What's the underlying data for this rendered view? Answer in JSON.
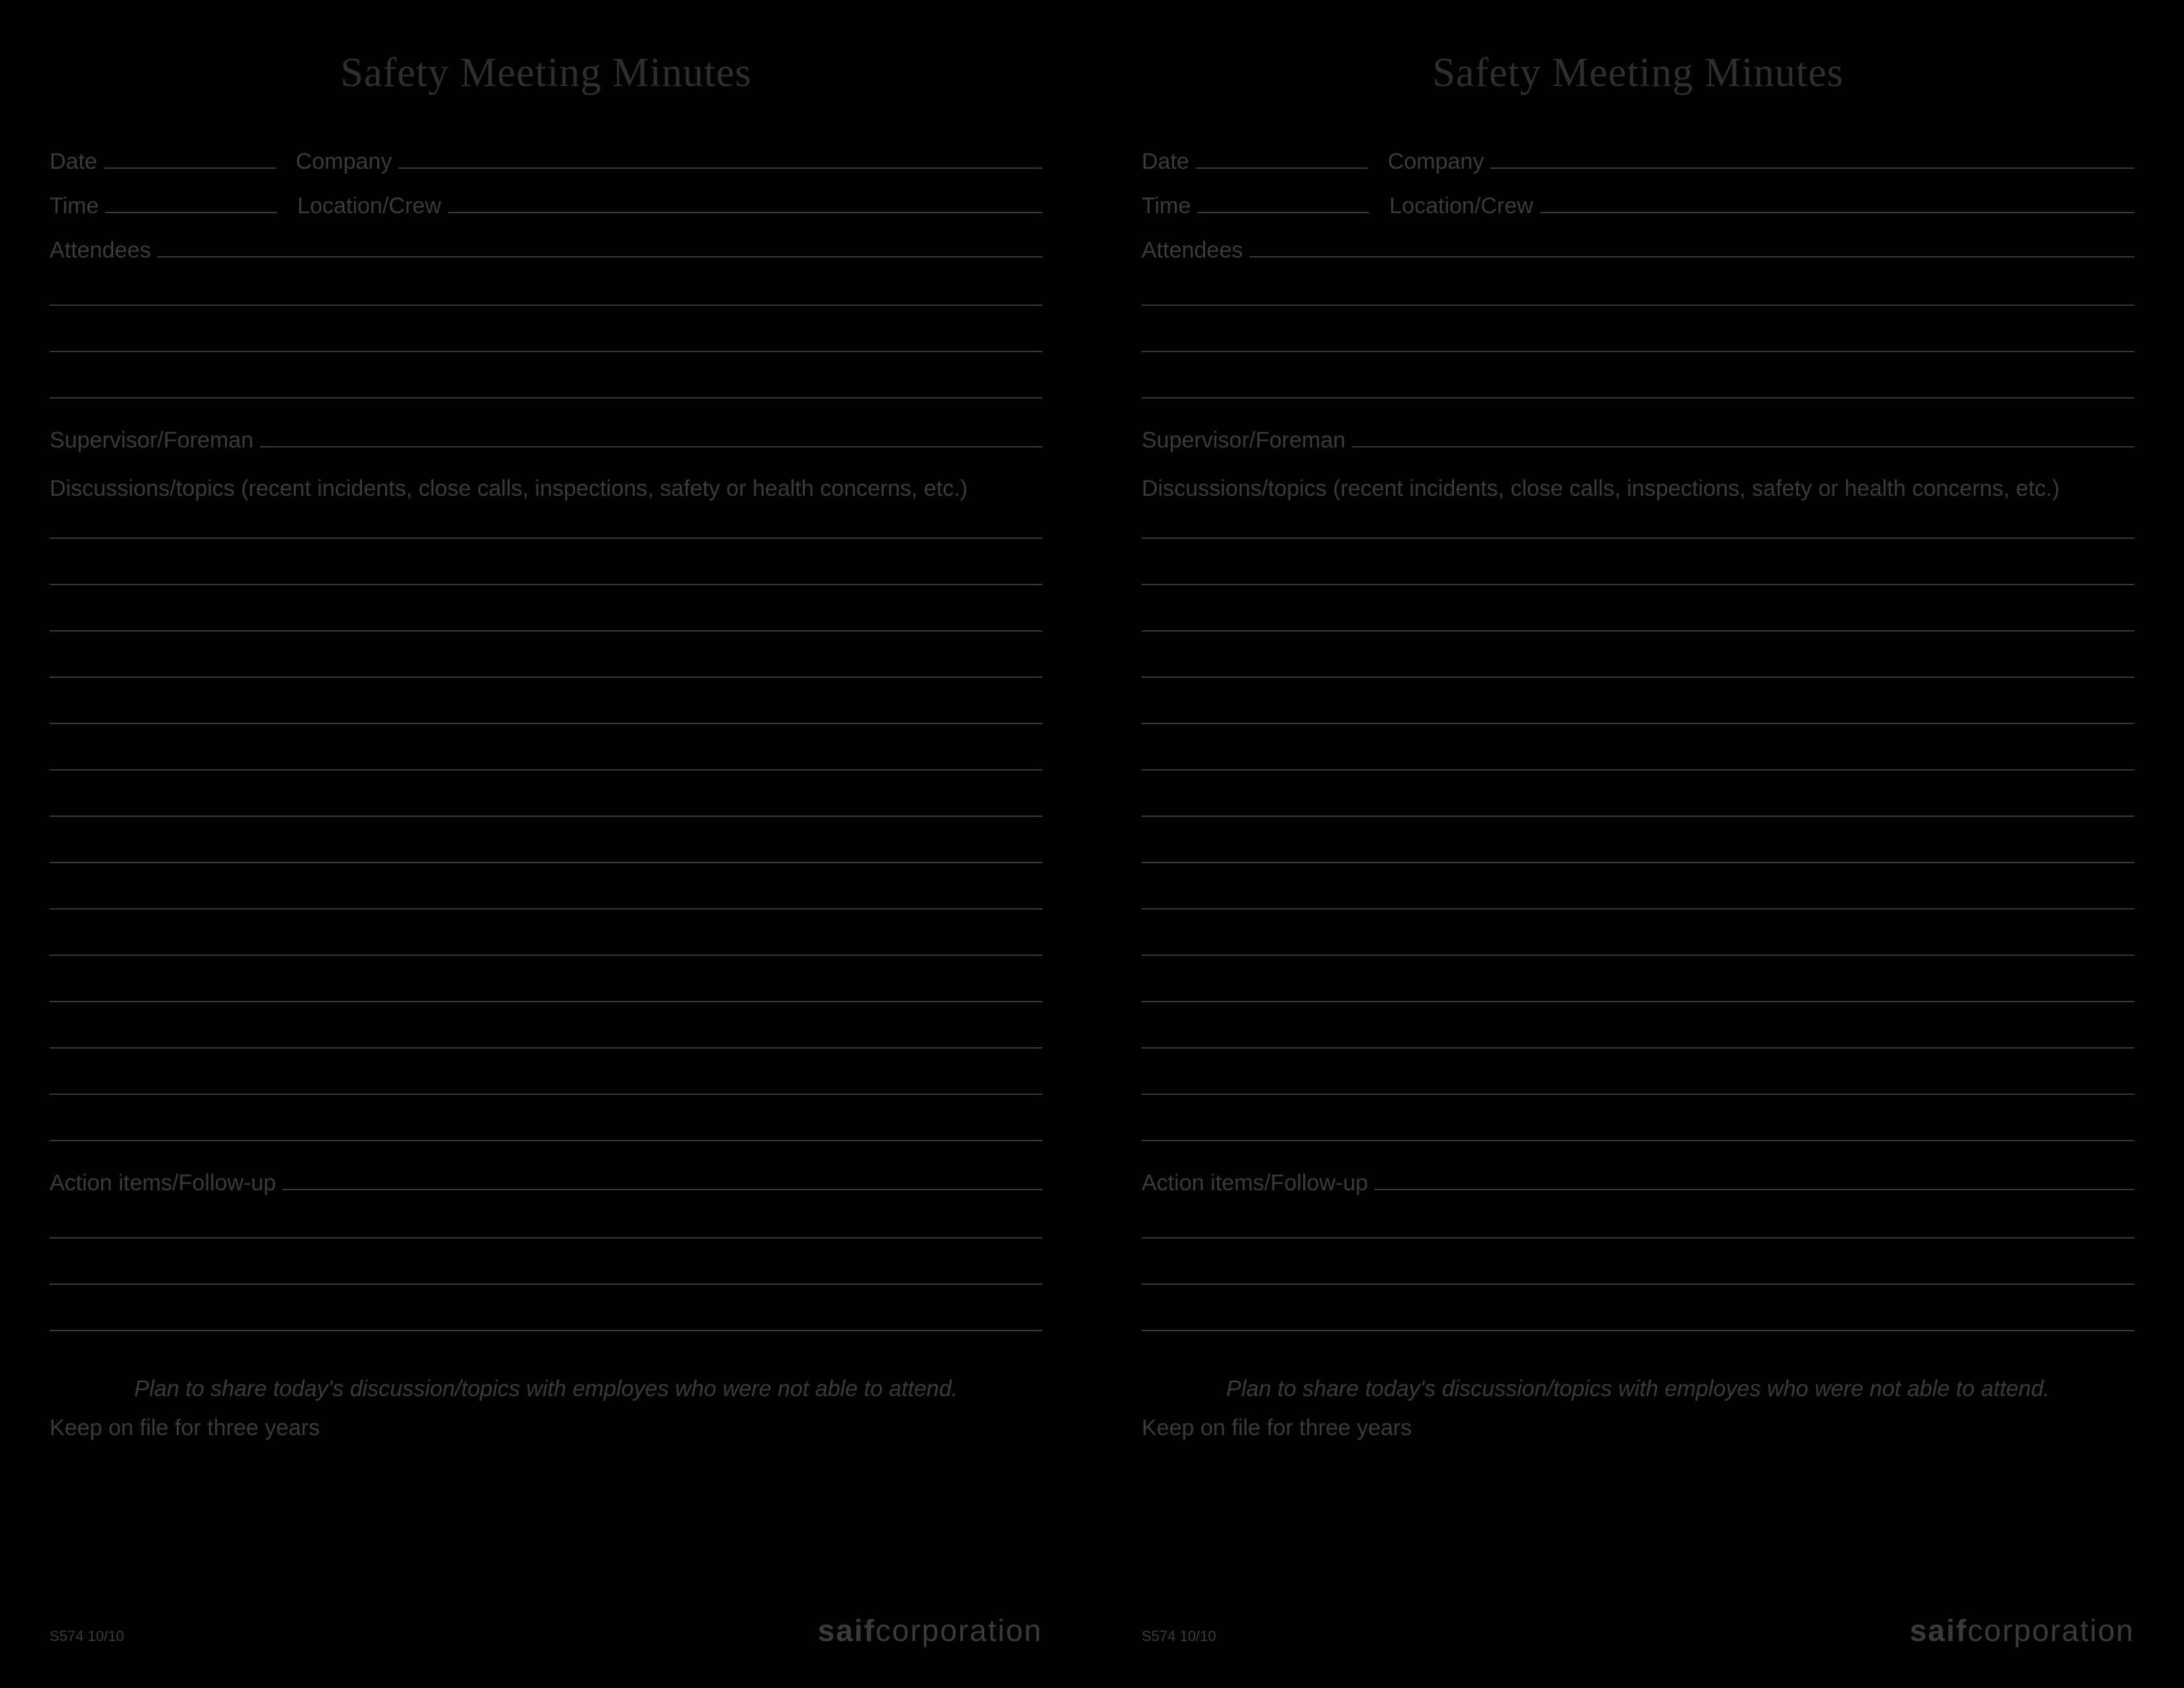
{
  "form": {
    "title": "Safety Meeting Minutes",
    "fields": {
      "date_label": "Date",
      "company_label": "Company",
      "time_label": "Time",
      "location_label": "Location/Crew",
      "attendees_label": "Attendees",
      "supervisor_label": "Supervisor/Foreman",
      "discussions_label": "Discussions/topics (recent incidents, close calls, inspections, safety or health concerns, etc.)",
      "actions_label": "Action items/Follow-up"
    },
    "footer": {
      "instruction": "Plan to share today's discussion/topics with employes who were not able to attend.",
      "retain": "Keep on file for three years",
      "form_code": "S574  10/10",
      "logo_bold": "saif",
      "logo_light": "corporation"
    },
    "line_counts": {
      "attendees_blank_lines": 3,
      "discussions_blank_lines": 14,
      "actions_blank_lines": 3
    },
    "colors": {
      "background": "#000000",
      "text": "#3a3a3a",
      "title": "#2e2e2e",
      "line": "#3a3a3a"
    },
    "typography": {
      "title_fontsize": 62,
      "label_fontsize": 34,
      "instruction_fontsize": 34,
      "code_fontsize": 22,
      "logo_fontsize": 46
    }
  }
}
